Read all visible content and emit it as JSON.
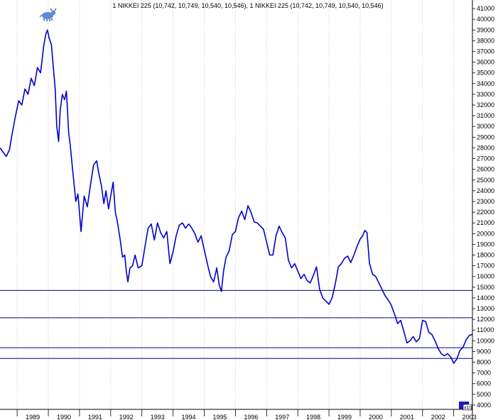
{
  "chart_data": {
    "type": "line",
    "title": "1 NIKKEI 225 (10,742, 10,749, 10,540, 10,546), 1 NIKKEI 225 (10,742, 10,749, 10,540, 10,546)",
    "xlabel": "",
    "ylabel": "",
    "x_ticks": [
      "1989",
      "1990",
      "1991",
      "1992",
      "1993",
      "1994",
      "1995",
      "1996",
      "1997",
      "1998",
      "1999",
      "2000",
      "2001",
      "2002",
      "2003"
    ],
    "y_ticks": [
      4000,
      5000,
      6000,
      7000,
      8000,
      9000,
      10000,
      11000,
      12000,
      13000,
      14000,
      15000,
      16000,
      17000,
      18000,
      19000,
      20000,
      21000,
      22000,
      23000,
      24000,
      25000,
      26000,
      27000,
      28000,
      29000,
      30000,
      31000,
      32000,
      33000,
      34000,
      35000,
      36000,
      37000,
      38000,
      39000,
      40000,
      41000
    ],
    "xlim": [
      1988.45,
      2003.6
    ],
    "ylim": [
      3600,
      41800
    ],
    "grid": "vertical",
    "line_color": "#0000cc",
    "hline_color": "#00008b",
    "horizontal_lines": [
      14700,
      12150,
      9350,
      8350
    ],
    "volume_marker_label": "x10",
    "series": [
      {
        "x": [
          1988.45,
          1988.55,
          1988.65,
          1988.75,
          1988.85,
          1988.95,
          1989.05,
          1989.15,
          1989.25,
          1989.35,
          1989.45,
          1989.55,
          1989.65,
          1989.75,
          1989.85,
          1989.92,
          1989.97,
          1990.03,
          1990.1,
          1990.17,
          1990.22,
          1990.27,
          1990.33,
          1990.38,
          1990.45,
          1990.52,
          1990.58,
          1990.65,
          1990.7,
          1990.76,
          1990.82,
          1990.88,
          1990.95,
          1991.05,
          1991.15,
          1991.25,
          1991.35,
          1991.45,
          1991.55,
          1991.62,
          1991.7,
          1991.78,
          1991.85,
          1991.93,
          1992.0,
          1992.08,
          1992.15,
          1992.22,
          1992.3,
          1992.38,
          1992.45,
          1992.5,
          1992.55,
          1992.62,
          1992.7,
          1992.78,
          1992.88,
          1993.0,
          1993.1,
          1993.2,
          1993.3,
          1993.4,
          1993.5,
          1993.6,
          1993.7,
          1993.8,
          1993.9,
          1994.0,
          1994.1,
          1994.2,
          1994.3,
          1994.4,
          1994.5,
          1994.6,
          1994.7,
          1994.8,
          1994.9,
          1995.0,
          1995.1,
          1995.2,
          1995.3,
          1995.4,
          1995.48,
          1995.55,
          1995.62,
          1995.7,
          1995.8,
          1995.9,
          1996.0,
          1996.1,
          1996.2,
          1996.3,
          1996.4,
          1996.5,
          1996.6,
          1996.7,
          1996.8,
          1996.9,
          1997.0,
          1997.1,
          1997.2,
          1997.3,
          1997.4,
          1997.5,
          1997.6,
          1997.7,
          1997.8,
          1997.9,
          1998.0,
          1998.1,
          1998.2,
          1998.3,
          1998.4,
          1998.5,
          1998.6,
          1998.7,
          1998.8,
          1998.9,
          1999.0,
          1999.1,
          1999.2,
          1999.3,
          1999.4,
          1999.5,
          1999.6,
          1999.7,
          1999.8,
          1999.9,
          2000.0,
          2000.08,
          2000.15,
          2000.22,
          2000.3,
          2000.4,
          2000.5,
          2000.6,
          2000.7,
          2000.8,
          2000.9,
          2001.0,
          2001.1,
          2001.2,
          2001.3,
          2001.4,
          2001.5,
          2001.6,
          2001.7,
          2001.8,
          2001.9,
          2002.0,
          2002.1,
          2002.2,
          2002.3,
          2002.4,
          2002.5,
          2002.6,
          2002.7,
          2002.8,
          2002.9,
          2003.0,
          2003.1,
          2003.2,
          2003.3,
          2003.4,
          2003.5,
          2003.6
        ],
        "y": [
          28000,
          27600,
          27200,
          27800,
          29500,
          31000,
          32400,
          32000,
          33500,
          33000,
          34500,
          33800,
          35500,
          35000,
          37500,
          38600,
          39000,
          38200,
          37600,
          35200,
          33500,
          30000,
          28600,
          31500,
          33000,
          32500,
          33300,
          29500,
          28300,
          26500,
          24800,
          23000,
          23700,
          20200,
          23500,
          22500,
          24500,
          26400,
          26800,
          25600,
          24500,
          22800,
          24000,
          22300,
          23500,
          24800,
          22000,
          21000,
          19500,
          17800,
          18000,
          16500,
          15500,
          16800,
          17000,
          18000,
          16800,
          17000,
          18800,
          20500,
          20900,
          19400,
          21000,
          20100,
          19600,
          20200,
          17200,
          18300,
          19800,
          20800,
          21000,
          20500,
          20900,
          20500,
          20000,
          19200,
          19800,
          18500,
          17200,
          16000,
          15500,
          16800,
          15200,
          14600,
          16500,
          17800,
          18400,
          19900,
          20200,
          21500,
          22100,
          21300,
          22600,
          22000,
          21100,
          21000,
          20700,
          20400,
          19200,
          18000,
          18000,
          19800,
          20700,
          20100,
          19600,
          17500,
          16800,
          17200,
          16500,
          15800,
          16200,
          15600,
          15400,
          16100,
          16900,
          14800,
          14000,
          13700,
          13400,
          14000,
          15300,
          16900,
          17200,
          17700,
          17900,
          17300,
          18000,
          18800,
          19500,
          19800,
          20300,
          20100,
          17200,
          16200,
          16000,
          15400,
          14800,
          14200,
          13800,
          13300,
          12500,
          11600,
          11900,
          10900,
          9800,
          10000,
          10400,
          9900,
          10200,
          11900,
          11800,
          10800,
          10600,
          10000,
          9300,
          8800,
          8600,
          8800,
          8500,
          7900,
          8300,
          9100,
          9400,
          10100,
          10500,
          10600
        ]
      }
    ]
  }
}
